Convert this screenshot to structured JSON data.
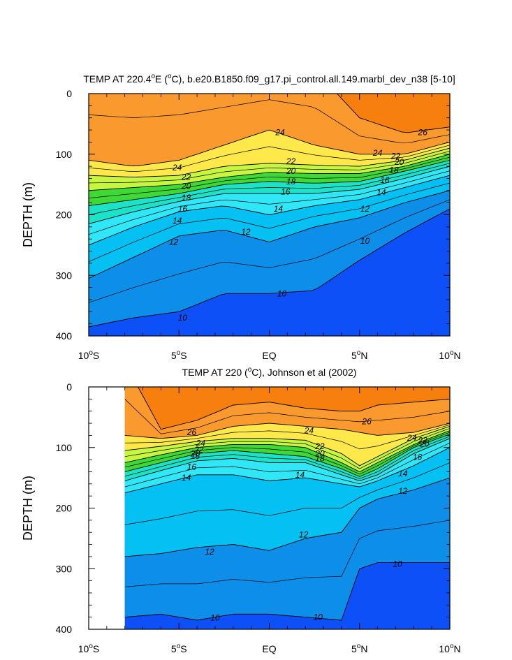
{
  "chart_data": [
    {
      "type": "heatmap",
      "id": "model",
      "title": "TEMP AT 220.4°E (°C), b.e20.B1850.f09_g17.pi_control.all.149.marbl_dev_n38 [5-10]",
      "title_parts": {
        "pre": "TEMP AT 220.4",
        "deg": "o",
        "mid": "E (",
        "deg2": "o",
        "post": "C), b.e20.B1850.f09_g17.pi_control.all.149.marbl_dev_n38 [5-10]"
      },
      "ylabel": "DEPTH (m)",
      "xlabel": "",
      "xlim": [
        -10,
        10
      ],
      "ylim": [
        400,
        0
      ],
      "x_ticks": [
        {
          "v": -10,
          "num": "10",
          "sup": "o",
          "hem": "S"
        },
        {
          "v": -5,
          "num": "5",
          "sup": "o",
          "hem": "S"
        },
        {
          "v": 0,
          "num": "EQ",
          "sup": "",
          "hem": ""
        },
        {
          "v": 5,
          "num": "5",
          "sup": "o",
          "hem": "N"
        },
        {
          "v": 10,
          "num": "10",
          "sup": "o",
          "hem": "N"
        }
      ],
      "y_ticks": [
        0,
        100,
        200,
        300,
        400
      ],
      "lat": [
        -10,
        -7.5,
        -5,
        -2.5,
        0,
        2.5,
        5,
        7.5,
        10
      ],
      "isotherms": [
        {
          "level": 26,
          "depths": [
            -40,
            -40,
            -40,
            -40,
            -40,
            -40,
            40,
            65,
            55
          ]
        },
        {
          "level": 24,
          "depths": [
            110,
            120,
            110,
            85,
            60,
            85,
            100,
            100,
            80
          ]
        },
        {
          "level": 22,
          "depths": [
            135,
            138,
            135,
            120,
            115,
            118,
            120,
            110,
            90
          ]
        },
        {
          "level": 20,
          "depths": [
            160,
            155,
            150,
            138,
            130,
            132,
            132,
            120,
            100
          ]
        },
        {
          "level": 18,
          "depths": [
            185,
            175,
            165,
            150,
            145,
            148,
            145,
            128,
            110
          ]
        },
        {
          "level": 16,
          "depths": [
            215,
            195,
            178,
            165,
            165,
            165,
            158,
            140,
            120
          ]
        },
        {
          "level": 14,
          "depths": [
            250,
            220,
            195,
            185,
            200,
            185,
            175,
            155,
            135
          ]
        },
        {
          "level": 12,
          "depths": [
            305,
            270,
            235,
            225,
            245,
            220,
            205,
            180,
            160
          ]
        },
        {
          "level": 10,
          "depths": [
            385,
            370,
            360,
            330,
            330,
            325,
            275,
            230,
            190
          ]
        }
      ],
      "blank_left_until": null,
      "contour_labels": [
        {
          "text": "24",
          "x": 0.6,
          "y": 64
        },
        {
          "text": "26",
          "x": 8.5,
          "y": 64
        },
        {
          "text": "24",
          "x": 6.0,
          "y": 98
        },
        {
          "text": "22",
          "x": 7.0,
          "y": 103
        },
        {
          "text": "20",
          "x": 7.2,
          "y": 113
        },
        {
          "text": "18",
          "x": 6.9,
          "y": 126
        },
        {
          "text": "16",
          "x": 6.4,
          "y": 143
        },
        {
          "text": "14",
          "x": 6.2,
          "y": 163
        },
        {
          "text": "12",
          "x": 5.3,
          "y": 190
        },
        {
          "text": "10",
          "x": 5.3,
          "y": 243
        },
        {
          "text": "24",
          "x": -5.1,
          "y": 122
        },
        {
          "text": "22",
          "x": -4.6,
          "y": 138
        },
        {
          "text": "20",
          "x": -4.6,
          "y": 153
        },
        {
          "text": "18",
          "x": -4.6,
          "y": 172
        },
        {
          "text": "16",
          "x": -4.8,
          "y": 190
        },
        {
          "text": "14",
          "x": -5.1,
          "y": 210
        },
        {
          "text": "12",
          "x": -5.3,
          "y": 245
        },
        {
          "text": "22",
          "x": 1.2,
          "y": 112
        },
        {
          "text": "20",
          "x": 1.2,
          "y": 128
        },
        {
          "text": "18",
          "x": 1.2,
          "y": 145
        },
        {
          "text": "16",
          "x": 0.9,
          "y": 162
        },
        {
          "text": "14",
          "x": 0.5,
          "y": 190
        },
        {
          "text": "12",
          "x": -1.3,
          "y": 228
        },
        {
          "text": "10",
          "x": 0.7,
          "y": 330
        },
        {
          "text": "10",
          "x": -4.8,
          "y": 370
        }
      ]
    },
    {
      "type": "heatmap",
      "id": "obs",
      "title": "TEMP AT 220 (°C), Johnson et al (2002)",
      "title_parts": {
        "pre": "TEMP AT 220 (",
        "deg": "o",
        "mid": "C), Johnson et al (2002)",
        "deg2": "",
        "post": ""
      },
      "ylabel": "DEPTH (m)",
      "xlabel": "",
      "xlim": [
        -10,
        10
      ],
      "ylim": [
        400,
        0
      ],
      "x_ticks": [
        {
          "v": -10,
          "num": "10",
          "sup": "o",
          "hem": "S"
        },
        {
          "v": -5,
          "num": "5",
          "sup": "o",
          "hem": "S"
        },
        {
          "v": 0,
          "num": "EQ",
          "sup": "",
          "hem": ""
        },
        {
          "v": 5,
          "num": "5",
          "sup": "o",
          "hem": "N"
        },
        {
          "v": 10,
          "num": "10",
          "sup": "o",
          "hem": "N"
        }
      ],
      "y_ticks": [
        0,
        100,
        200,
        300,
        400
      ],
      "lat": [
        -8,
        -6,
        -4,
        -2,
        0,
        2,
        4,
        5,
        6,
        8,
        10
      ],
      "isotherms": [
        {
          "level": 26,
          "depths": [
            -40,
            70,
            55,
            30,
            25,
            35,
            40,
            40,
            30,
            25,
            20
          ]
        },
        {
          "level": 24,
          "depths": [
            80,
            85,
            80,
            65,
            60,
            65,
            70,
            75,
            80,
            75,
            60
          ]
        },
        {
          "level": 22,
          "depths": [
            105,
            98,
            90,
            85,
            85,
            88,
            110,
            130,
            115,
            85,
            65
          ]
        },
        {
          "level": 20,
          "depths": [
            125,
            112,
            100,
            95,
            95,
            100,
            125,
            140,
            125,
            95,
            72
          ]
        },
        {
          "level": 18,
          "depths": [
            140,
            125,
            110,
            105,
            110,
            115,
            135,
            148,
            135,
            100,
            78
          ]
        },
        {
          "level": 16,
          "depths": [
            155,
            138,
            122,
            118,
            125,
            125,
            145,
            155,
            145,
            110,
            85
          ]
        },
        {
          "level": 14,
          "depths": [
            175,
            160,
            145,
            145,
            155,
            150,
            160,
            165,
            155,
            130,
            100
          ]
        },
        {
          "level": 12,
          "depths": [
            280,
            275,
            265,
            260,
            270,
            250,
            240,
            200,
            185,
            170,
            150
          ]
        },
        {
          "level": 10,
          "depths": [
            380,
            375,
            385,
            375,
            375,
            380,
            385,
            300,
            290,
            290,
            290
          ]
        }
      ],
      "blank_left_until": -8,
      "contour_labels": [
        {
          "text": "26",
          "x": -4.3,
          "y": 75
        },
        {
          "text": "24",
          "x": -3.8,
          "y": 93
        },
        {
          "text": "22",
          "x": -3.9,
          "y": 104
        },
        {
          "text": "20",
          "x": -4.1,
          "y": 110
        },
        {
          "text": "18",
          "x": -4.1,
          "y": 114
        },
        {
          "text": "16",
          "x": -4.3,
          "y": 132
        },
        {
          "text": "14",
          "x": -4.6,
          "y": 150
        },
        {
          "text": "24",
          "x": 2.2,
          "y": 72
        },
        {
          "text": "26",
          "x": 5.4,
          "y": 57
        },
        {
          "text": "22",
          "x": 2.8,
          "y": 98
        },
        {
          "text": "20",
          "x": 2.8,
          "y": 110
        },
        {
          "text": "18",
          "x": 2.8,
          "y": 118
        },
        {
          "text": "14",
          "x": 1.7,
          "y": 145
        },
        {
          "text": "24",
          "x": 7.9,
          "y": 84
        },
        {
          "text": "22",
          "x": 8.5,
          "y": 88
        },
        {
          "text": "20",
          "x": 8.6,
          "y": 94
        },
        {
          "text": "16",
          "x": 8.2,
          "y": 116
        },
        {
          "text": "14",
          "x": 7.4,
          "y": 143
        },
        {
          "text": "12",
          "x": 7.4,
          "y": 172
        },
        {
          "text": "12",
          "x": 1.9,
          "y": 244
        },
        {
          "text": "12",
          "x": -3.3,
          "y": 272
        },
        {
          "text": "10",
          "x": 7.1,
          "y": 292
        },
        {
          "text": "10",
          "x": -3.0,
          "y": 381
        },
        {
          "text": "10",
          "x": 2.7,
          "y": 380
        }
      ]
    }
  ],
  "colors": {
    "bands": [
      {
        "min": 27,
        "color": "#f54a0f"
      },
      {
        "min": 26,
        "color": "#f77f0d"
      },
      {
        "min": 24.5,
        "color": "#fa9a2e"
      },
      {
        "min": 23.5,
        "color": "#fdbd3a"
      },
      {
        "min": 22.5,
        "color": "#fee84a"
      },
      {
        "min": 21.5,
        "color": "#f6f847"
      },
      {
        "min": 20.5,
        "color": "#c6f640"
      },
      {
        "min": 19.5,
        "color": "#8ef23b"
      },
      {
        "min": 18.5,
        "color": "#3fd937"
      },
      {
        "min": 17.5,
        "color": "#17c06f"
      },
      {
        "min": 16.5,
        "color": "#1ce3c8"
      },
      {
        "min": 15.5,
        "color": "#27f0ef"
      },
      {
        "min": 14.5,
        "color": "#2fe7f7"
      },
      {
        "min": 13.5,
        "color": "#0ad6f5"
      },
      {
        "min": 12.5,
        "color": "#05c0f2"
      },
      {
        "min": 11.5,
        "color": "#08a5ef"
      },
      {
        "min": 10.5,
        "color": "#0d8ee8"
      },
      {
        "min": 9.5,
        "color": "#166fee"
      },
      {
        "min": 8.5,
        "color": "#0d50f8"
      },
      {
        "min": -99,
        "color": "#0020e8"
      }
    ]
  }
}
